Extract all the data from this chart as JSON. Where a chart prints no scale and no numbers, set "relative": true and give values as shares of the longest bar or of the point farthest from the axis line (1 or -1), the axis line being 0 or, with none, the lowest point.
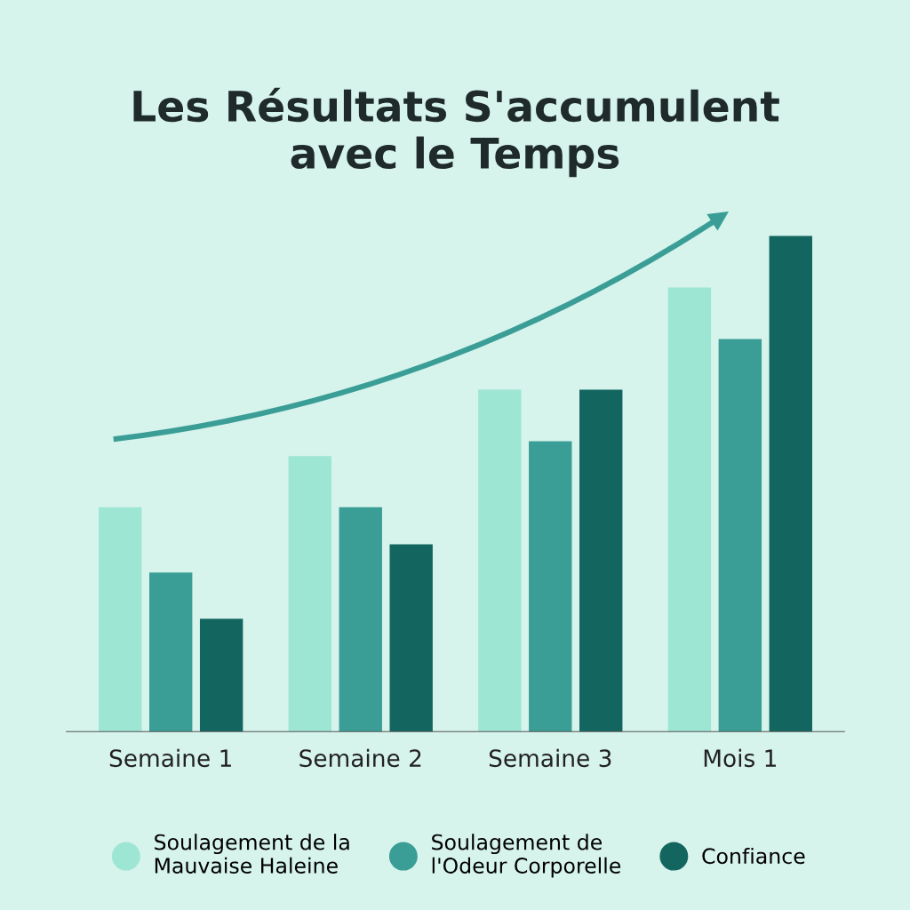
{
  "chart_data": {
    "type": "bar",
    "title": "Les Résultats S'accumulent\navec le Temps",
    "relative": true,
    "categories": [
      "Semaine 1",
      "Semaine 2",
      "Semaine 3",
      "Mois 1"
    ],
    "series": [
      {
        "name": "Soulagement de la\nMauvaise Haleine",
        "color": "#9ee6d4",
        "values": [
          0.453,
          0.556,
          0.69,
          0.896
        ]
      },
      {
        "name": "Soulagement de\nl'Odeur Corporelle",
        "color": "#3a9e96",
        "values": [
          0.321,
          0.453,
          0.586,
          0.792
        ]
      },
      {
        "name": "Confiance",
        "color": "#136660",
        "values": [
          0.228,
          0.378,
          0.69,
          1.0
        ]
      }
    ],
    "legend": "bottom",
    "grid": false,
    "marker": "circle"
  }
}
